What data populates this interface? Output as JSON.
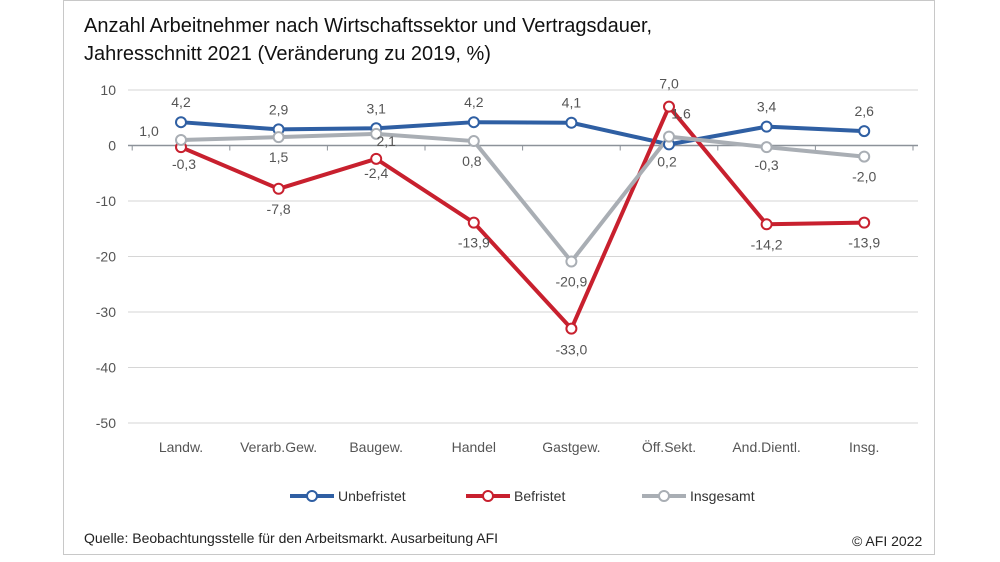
{
  "chart_data": {
    "type": "line",
    "title": "Anzahl Arbeitnehmer nach Wirtschaftssektor und Vertragsdauer,",
    "subtitle": "Jahresschnitt 2021 (Veränderung zu 2019, %)",
    "xlabel": "",
    "ylabel": "",
    "ylim": [
      -50,
      10
    ],
    "yticks": [
      "10",
      "0",
      "-10",
      "-20",
      "-30",
      "-40",
      "-50"
    ],
    "categories": [
      "Landw.",
      "Verarb.Gew.",
      "Baugew.",
      "Handel",
      "Gastgew.",
      "Öff.Sekt.",
      "And.Dientl.",
      "Insg."
    ],
    "grid": true,
    "legend_position": "bottom",
    "series": [
      {
        "name": "Unbefristet",
        "color": "#2f5fa3",
        "values": [
          4.2,
          2.9,
          3.1,
          4.2,
          4.1,
          0.2,
          3.4,
          2.6
        ],
        "labels": [
          "4,2",
          "2,9",
          "3,1",
          "4,2",
          "4,1",
          "0,2",
          "3,4",
          "2,6"
        ]
      },
      {
        "name": "Befristet",
        "color": "#c8202e",
        "values": [
          -0.3,
          -7.8,
          -2.4,
          -13.9,
          -33.0,
          7.0,
          -14.2,
          -13.9
        ],
        "labels": [
          "-0,3",
          "-7,8",
          "-2,4",
          "-13,9",
          "-33,0",
          "7,0",
          "-14,2",
          "-13,9"
        ]
      },
      {
        "name": "Insgesamt",
        "color": "#a9aeb4",
        "values": [
          1.0,
          1.5,
          2.1,
          0.8,
          -20.9,
          1.6,
          -0.3,
          -2.0
        ],
        "labels": [
          "1,0",
          "1,5",
          "2,1",
          "0,8",
          "-20,9",
          "1,6",
          "-0,3",
          "-2,0"
        ]
      }
    ]
  },
  "source": "Quelle: Beobachtungsstelle für den Arbeitsmarkt. Ausarbeitung AFI",
  "copyright": "© AFI 2022"
}
